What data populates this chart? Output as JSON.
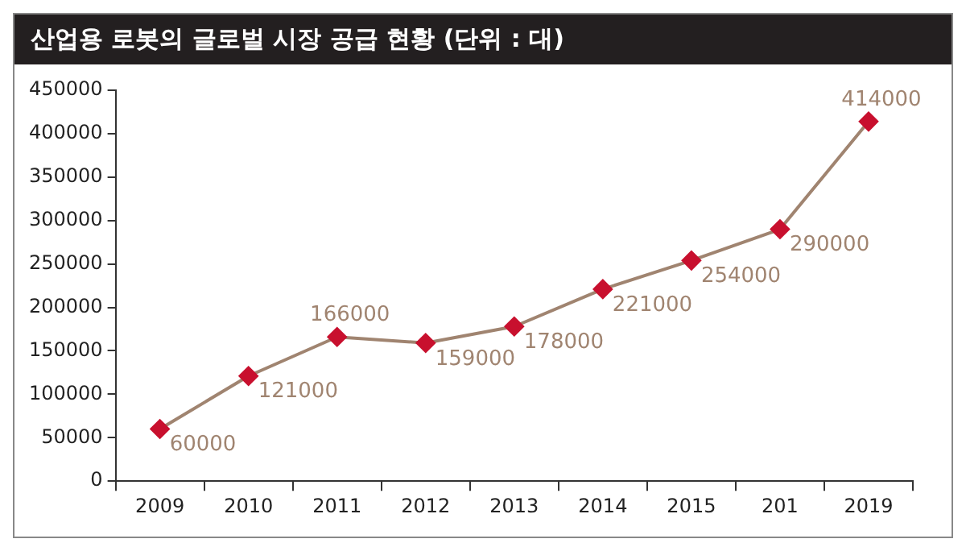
{
  "chart_data": {
    "type": "line",
    "title": "산업용 로봇의 글로벌 시장 공급 현황 (단위 : 대)",
    "categories": [
      "2009",
      "2010",
      "2011",
      "2012",
      "2013",
      "2014",
      "2015",
      "201",
      "2019"
    ],
    "series": [
      {
        "color": "#a08470",
        "colors": [
          "#c8102e",
          "#c8102e",
          "#c8102e",
          "#c8102e",
          "#c8102e",
          "#c8102e",
          "#c8102e",
          "#c8102e",
          "#c8102e"
        ],
        "values": [
          60000,
          121000,
          166000,
          159000,
          178000,
          221000,
          254000,
          290000,
          414000
        ]
      }
    ],
    "ylim": [
      0,
      450000
    ],
    "yticks": [
      0,
      50000,
      100000,
      150000,
      200000,
      250000,
      300000,
      350000,
      400000,
      450000
    ],
    "grid": false,
    "legend": false,
    "marker": "diamond",
    "line_style": "solid",
    "data_labels": true
  }
}
